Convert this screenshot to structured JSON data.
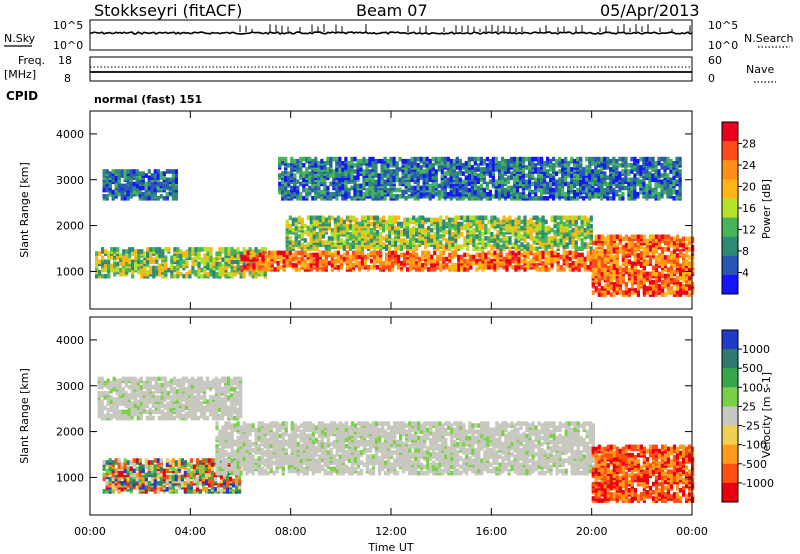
{
  "header": {
    "station": "Stokkseyri (fitACF)",
    "beam": "Beam 07",
    "date": "05/Apr/2013"
  },
  "top_panels": {
    "nsky_label": "N.Sky",
    "nsky_ticks": [
      "10^5",
      "10^0"
    ],
    "nsearch_label": "N.Search",
    "nsearch_ticks": [
      "10^5",
      "10^0"
    ],
    "freq_label": "Freq.",
    "freq_unit": "[MHz]",
    "freq_ticks": [
      "18",
      "8"
    ],
    "nave_label": "Nave",
    "nave_ticks": [
      "60",
      "0"
    ],
    "cpid_label": "CPID",
    "cpid_value": "normal (fast) 151"
  },
  "chart_data": [
    {
      "type": "heatmap",
      "panel": "power",
      "ylabel": "Slant Range [km]",
      "xlabel": "",
      "ylim": [
        180,
        4500
      ],
      "yticks": [
        "1000",
        "2000",
        "3000",
        "4000"
      ],
      "colorbar": {
        "label": "Power [dB]",
        "ticks": [
          "28",
          "24",
          "20",
          "16",
          "12",
          "8",
          "4"
        ],
        "colors": [
          "#e8001c",
          "#ff4a1c",
          "#ff8f18",
          "#ffb515",
          "#b6e22a",
          "#47b45c",
          "#2f8a75",
          "#2a56b6",
          "#1414ff"
        ]
      },
      "bands": [
        {
          "x": [
            0.2,
            7.0
          ],
          "range": [
            900,
            1500
          ],
          "level": "mid"
        },
        {
          "x": [
            6.0,
            20.5
          ],
          "range": [
            1050,
            1450
          ],
          "level": "high"
        },
        {
          "x": [
            7.8,
            20.0
          ],
          "range": [
            1500,
            2200
          ],
          "level": "mid"
        },
        {
          "x": [
            20.0,
            24.0
          ],
          "range": [
            500,
            1800
          ],
          "level": "high"
        },
        {
          "x": [
            0.5,
            3.5
          ],
          "range": [
            2600,
            3200
          ],
          "level": "low"
        },
        {
          "x": [
            7.5,
            23.5
          ],
          "range": [
            2600,
            3500
          ],
          "level": "low"
        }
      ]
    },
    {
      "type": "heatmap",
      "panel": "velocity",
      "ylabel": "Slant Range [km]",
      "xlabel": "Time UT",
      "ylim": [
        180,
        4500
      ],
      "yticks": [
        "1000",
        "2000",
        "3000",
        "4000"
      ],
      "xticks": [
        "00:00",
        "04:00",
        "08:00",
        "12:00",
        "16:00",
        "20:00",
        "00:00"
      ],
      "colorbar": {
        "label": "Velocity [m s-1]",
        "ticks": [
          "1000",
          "500",
          "100",
          "25",
          "-25",
          "-100",
          "-500",
          "-1000"
        ],
        "colors": [
          "#1e3cc8",
          "#2e7a6e",
          "#33a84b",
          "#7bd04a",
          "#c8c8c0",
          "#f0d050",
          "#ff9a1a",
          "#ff5010",
          "#e80012"
        ]
      },
      "bands": [
        {
          "x": [
            0.5,
            6.0
          ],
          "range": [
            700,
            1400
          ],
          "level": "mixed"
        },
        {
          "x": [
            5.0,
            20.0
          ],
          "range": [
            1100,
            2200
          ],
          "level": "zero"
        },
        {
          "x": [
            0.3,
            6.0
          ],
          "range": [
            2300,
            3200
          ],
          "level": "zero"
        },
        {
          "x": [
            20.0,
            24.0
          ],
          "range": [
            500,
            1700
          ],
          "level": "negative"
        }
      ]
    }
  ]
}
